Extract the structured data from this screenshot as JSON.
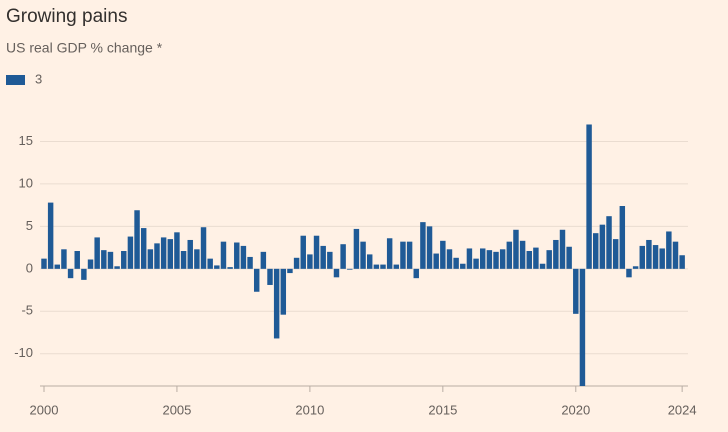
{
  "chart_data": {
    "type": "bar",
    "title": "Growing pains",
    "subtitle": "US real GDP % change *",
    "x": [
      2000,
      2000.25,
      2000.5,
      2000.75,
      2001,
      2001.25,
      2001.5,
      2001.75,
      2002,
      2002.25,
      2002.5,
      2002.75,
      2003,
      2003.25,
      2003.5,
      2003.75,
      2004,
      2004.25,
      2004.5,
      2004.75,
      2005,
      2005.25,
      2005.5,
      2005.75,
      2006,
      2006.25,
      2006.5,
      2006.75,
      2007,
      2007.25,
      2007.5,
      2007.75,
      2008,
      2008.25,
      2008.5,
      2008.75,
      2009,
      2009.25,
      2009.5,
      2009.75,
      2010,
      2010.25,
      2010.5,
      2010.75,
      2011,
      2011.25,
      2011.5,
      2011.75,
      2012,
      2012.25,
      2012.5,
      2012.75,
      2013,
      2013.25,
      2013.5,
      2013.75,
      2014,
      2014.25,
      2014.5,
      2014.75,
      2015,
      2015.25,
      2015.5,
      2015.75,
      2016,
      2016.25,
      2016.5,
      2016.75,
      2017,
      2017.25,
      2017.5,
      2017.75,
      2018,
      2018.25,
      2018.5,
      2018.75,
      2019,
      2019.25,
      2019.5,
      2019.75,
      2020,
      2020.25,
      2020.5,
      2020.75,
      2021,
      2021.25,
      2021.5,
      2021.75,
      2022,
      2022.25,
      2022.5,
      2022.75,
      2023,
      2023.25,
      2023.5,
      2023.75,
      2024
    ],
    "series": [
      {
        "name": "3",
        "color": "#1f5a96",
        "values": [
          1.2,
          7.8,
          0.5,
          2.3,
          -1.1,
          2.1,
          -1.3,
          1.1,
          3.7,
          2.2,
          2.0,
          0.3,
          2.1,
          3.8,
          6.9,
          4.8,
          2.3,
          3.0,
          3.7,
          3.5,
          4.3,
          2.1,
          3.4,
          2.3,
          4.9,
          1.2,
          0.4,
          3.2,
          0.2,
          3.1,
          2.7,
          1.4,
          -2.7,
          2.0,
          -1.9,
          -8.2,
          -5.4,
          -0.5,
          1.3,
          3.9,
          1.7,
          3.9,
          2.7,
          2.0,
          -1.0,
          2.9,
          -0.1,
          4.7,
          3.2,
          1.7,
          0.5,
          0.5,
          3.6,
          0.5,
          3.2,
          3.2,
          -1.1,
          5.5,
          5.0,
          1.8,
          3.3,
          2.3,
          1.3,
          0.6,
          2.4,
          1.2,
          2.4,
          2.2,
          2.0,
          2.3,
          3.2,
          4.6,
          3.3,
          2.1,
          2.5,
          0.6,
          2.2,
          3.4,
          4.6,
          2.6,
          -5.3,
          -13.8,
          17.0,
          4.2,
          5.2,
          6.2,
          3.5,
          7.4,
          -1.0,
          0.3,
          2.7,
          3.4,
          2.8,
          2.4,
          4.4,
          3.2,
          1.6
        ]
      }
    ],
    "xlim": [
      1999.85,
      2024.22
    ],
    "xticks": [
      2000,
      2005,
      2010,
      2015,
      2020,
      2024
    ],
    "ylim": [
      -13.8,
      18
    ],
    "yticks": [
      -10,
      -5,
      0,
      5,
      10,
      15
    ],
    "grid": true
  }
}
